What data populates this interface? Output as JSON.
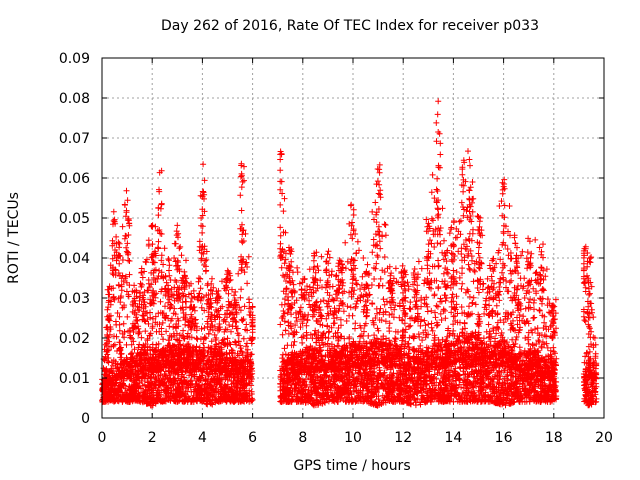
{
  "chart_data": {
    "type": "scatter",
    "title": "Day 262 of 2016, Rate Of TEC Index for receiver p033",
    "xlabel": "GPS time / hours",
    "ylabel": "ROTI / TECUs",
    "xlim": [
      0,
      20
    ],
    "ylim": [
      0,
      0.09
    ],
    "xticks": [
      "0",
      "2",
      "4",
      "6",
      "8",
      "10",
      "12",
      "14",
      "16",
      "18",
      "20"
    ],
    "yticks": [
      "0",
      "0.01",
      "0.02",
      "0.03",
      "0.04",
      "0.05",
      "0.06",
      "0.07",
      "0.08",
      "0.09"
    ],
    "grid": true,
    "marker": "+",
    "color": "#ff0000",
    "data_gap_hours": [
      6.0,
      7.1
    ],
    "segments": [
      {
        "x_start": 0.0,
        "x_end": 6.0
      },
      {
        "x_start": 7.1,
        "x_end": 18.1
      },
      {
        "x_start": 19.2,
        "x_end": 19.7
      }
    ],
    "envelope": {
      "x": [
        0.0,
        0.3,
        0.5,
        0.7,
        1.0,
        1.3,
        1.6,
        2.0,
        2.3,
        2.6,
        3.0,
        3.3,
        3.6,
        4.0,
        4.3,
        4.6,
        5.0,
        5.3,
        5.6,
        6.0,
        7.1,
        7.5,
        8.0,
        8.5,
        9.0,
        9.5,
        10.0,
        10.5,
        11.0,
        11.5,
        12.0,
        12.5,
        13.0,
        13.4,
        13.7,
        14.0,
        14.4,
        14.7,
        15.0,
        15.5,
        16.0,
        16.5,
        17.0,
        17.5,
        18.0,
        19.2,
        19.4,
        19.7
      ],
      "y_max": [
        0.012,
        0.035,
        0.053,
        0.045,
        0.059,
        0.032,
        0.038,
        0.048,
        0.062,
        0.04,
        0.049,
        0.04,
        0.034,
        0.065,
        0.036,
        0.032,
        0.038,
        0.032,
        0.066,
        0.028,
        0.067,
        0.043,
        0.036,
        0.042,
        0.042,
        0.04,
        0.055,
        0.04,
        0.064,
        0.04,
        0.038,
        0.038,
        0.051,
        0.083,
        0.044,
        0.05,
        0.069,
        0.069,
        0.051,
        0.04,
        0.06,
        0.046,
        0.046,
        0.045,
        0.03,
        0.043,
        0.043,
        0.021
      ],
      "y_min": [
        0.004,
        0.004,
        0.004,
        0.004,
        0.004,
        0.004,
        0.004,
        0.003,
        0.004,
        0.004,
        0.004,
        0.004,
        0.004,
        0.004,
        0.003,
        0.004,
        0.004,
        0.004,
        0.004,
        0.004,
        0.004,
        0.004,
        0.004,
        0.003,
        0.004,
        0.004,
        0.004,
        0.004,
        0.003,
        0.004,
        0.004,
        0.003,
        0.004,
        0.004,
        0.004,
        0.004,
        0.004,
        0.004,
        0.004,
        0.004,
        0.003,
        0.004,
        0.004,
        0.004,
        0.004,
        0.004,
        0.003,
        0.004
      ],
      "y_dense": [
        0.007,
        0.009,
        0.01,
        0.01,
        0.011,
        0.011,
        0.012,
        0.012,
        0.012,
        0.013,
        0.013,
        0.013,
        0.012,
        0.012,
        0.012,
        0.012,
        0.011,
        0.011,
        0.011,
        0.01,
        0.01,
        0.011,
        0.012,
        0.012,
        0.012,
        0.012,
        0.013,
        0.013,
        0.014,
        0.013,
        0.013,
        0.012,
        0.012,
        0.013,
        0.013,
        0.014,
        0.015,
        0.015,
        0.014,
        0.013,
        0.013,
        0.012,
        0.012,
        0.011,
        0.01,
        0.009,
        0.01,
        0.01
      ]
    }
  }
}
